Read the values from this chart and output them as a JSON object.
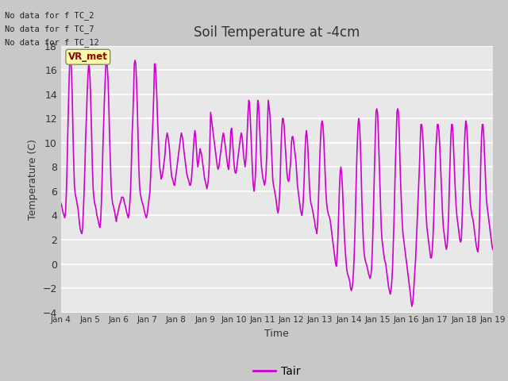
{
  "title": "Soil Temperature at -4cm",
  "xlabel": "Time",
  "ylabel": "Temperature (C)",
  "ylim": [
    -4,
    18
  ],
  "yticks": [
    -4,
    -2,
    0,
    2,
    4,
    6,
    8,
    10,
    12,
    14,
    16,
    18
  ],
  "line_color": "#cc00cc",
  "line_width": 1.2,
  "legend_label": "Tair",
  "text_lines": [
    "No data for f TC_2",
    "No data for f TC_7",
    "No data for f TC_12"
  ],
  "vr_met_label": "VR_met",
  "fig_bg_color": "#c8c8c8",
  "plot_bg_color": "#e8e8e8",
  "xtick_labels": [
    "Jan 4",
    "Jan 5",
    "Jan 6",
    "Jan 7",
    "Jan 8",
    "Jan 9",
    "Jan 10",
    "Jan 11",
    "Jan 12",
    "Jan 13",
    "Jan 14",
    "Jan 15",
    "Jan 16",
    "Jan 17",
    "Jan 18",
    "Jan 19"
  ],
  "data_values": [
    5.0,
    4.8,
    4.5,
    4.2,
    4.0,
    3.8,
    4.2,
    5.5,
    7.5,
    10.5,
    13.0,
    15.5,
    17.0,
    17.2,
    16.0,
    14.0,
    11.0,
    8.5,
    6.5,
    5.8,
    5.5,
    5.2,
    4.8,
    4.5,
    3.8,
    3.2,
    2.8,
    2.6,
    2.5,
    3.0,
    4.5,
    6.0,
    8.0,
    10.5,
    12.0,
    14.0,
    15.5,
    16.5,
    16.2,
    15.0,
    13.0,
    10.5,
    8.0,
    6.2,
    5.5,
    5.0,
    4.8,
    4.5,
    4.0,
    3.8,
    3.5,
    3.2,
    3.0,
    3.5,
    5.0,
    7.0,
    9.5,
    11.5,
    13.5,
    15.0,
    16.5,
    16.8,
    16.2,
    15.0,
    13.0,
    10.5,
    8.5,
    6.5,
    5.5,
    5.0,
    4.8,
    4.5,
    4.2,
    3.8,
    3.5,
    4.0,
    4.2,
    4.5,
    4.8,
    5.0,
    5.2,
    5.5,
    5.5,
    5.5,
    5.3,
    5.0,
    4.8,
    4.5,
    4.2,
    4.0,
    3.8,
    4.2,
    5.0,
    6.0,
    8.0,
    10.5,
    12.0,
    14.0,
    16.5,
    16.8,
    16.5,
    15.0,
    13.0,
    10.5,
    8.0,
    6.5,
    5.8,
    5.5,
    5.2,
    5.0,
    4.8,
    4.5,
    4.2,
    4.0,
    3.8,
    4.0,
    4.5,
    5.0,
    5.5,
    6.0,
    7.5,
    9.0,
    10.5,
    12.0,
    14.0,
    16.5,
    16.5,
    15.5,
    14.0,
    12.0,
    10.5,
    9.0,
    8.0,
    7.5,
    7.0,
    7.2,
    7.5,
    8.0,
    8.5,
    9.0,
    10.0,
    10.5,
    10.8,
    10.5,
    10.0,
    9.5,
    8.5,
    7.8,
    7.2,
    7.0,
    6.8,
    6.5,
    6.5,
    7.0,
    7.5,
    8.0,
    8.5,
    9.0,
    9.5,
    10.0,
    10.5,
    10.8,
    10.5,
    10.2,
    9.5,
    9.0,
    8.5,
    8.0,
    7.5,
    7.2,
    7.0,
    6.8,
    6.5,
    6.5,
    6.8,
    7.5,
    8.5,
    9.5,
    10.5,
    11.0,
    10.5,
    9.5,
    8.5,
    8.0,
    8.5,
    9.0,
    9.5,
    9.2,
    9.0,
    8.5,
    8.0,
    7.5,
    7.0,
    6.8,
    6.5,
    6.2,
    6.5,
    7.0,
    8.0,
    10.0,
    12.5,
    12.0,
    11.5,
    11.0,
    10.5,
    10.0,
    9.5,
    9.0,
    8.5,
    8.0,
    7.8,
    8.0,
    8.5,
    9.0,
    9.5,
    10.0,
    10.5,
    10.8,
    10.5,
    10.0,
    9.5,
    9.0,
    8.5,
    8.0,
    7.8,
    8.5,
    9.5,
    11.0,
    11.2,
    10.5,
    9.5,
    8.5,
    7.8,
    7.5,
    7.5,
    8.0,
    8.5,
    9.0,
    9.5,
    10.0,
    10.5,
    10.8,
    10.5,
    9.8,
    9.0,
    8.5,
    8.0,
    8.5,
    9.5,
    11.0,
    12.5,
    13.5,
    13.2,
    12.0,
    10.5,
    9.0,
    7.5,
    6.5,
    6.0,
    6.5,
    7.5,
    9.5,
    12.0,
    13.5,
    13.2,
    12.0,
    10.5,
    9.0,
    8.0,
    7.5,
    7.0,
    6.8,
    6.5,
    6.8,
    7.5,
    9.0,
    11.5,
    13.5,
    13.0,
    12.5,
    11.5,
    10.0,
    8.5,
    7.0,
    6.5,
    6.2,
    5.8,
    5.5,
    5.0,
    4.5,
    4.2,
    4.5,
    5.5,
    7.0,
    9.5,
    11.0,
    12.0,
    12.0,
    11.5,
    10.5,
    9.5,
    8.5,
    7.5,
    7.0,
    6.8,
    7.0,
    7.8,
    8.5,
    10.0,
    10.5,
    10.5,
    10.0,
    9.5,
    9.0,
    8.5,
    7.5,
    6.5,
    6.0,
    5.5,
    5.0,
    4.5,
    4.2,
    4.0,
    4.5,
    5.5,
    7.0,
    9.0,
    10.5,
    11.0,
    10.5,
    9.5,
    8.0,
    6.5,
    5.5,
    5.0,
    4.8,
    4.5,
    4.2,
    3.8,
    3.5,
    3.0,
    2.8,
    2.5,
    3.5,
    5.0,
    7.0,
    9.0,
    10.5,
    11.5,
    11.8,
    11.5,
    10.5,
    9.0,
    7.5,
    6.0,
    5.0,
    4.5,
    4.2,
    4.0,
    3.8,
    3.5,
    3.0,
    2.5,
    2.0,
    1.5,
    1.0,
    0.5,
    0.0,
    -0.2,
    0.5,
    2.0,
    4.0,
    6.0,
    7.5,
    8.0,
    7.5,
    6.5,
    5.0,
    3.5,
    2.0,
    1.0,
    0.2,
    -0.5,
    -0.8,
    -1.0,
    -1.2,
    -1.5,
    -2.0,
    -2.2,
    -2.0,
    -1.5,
    -0.5,
    1.0,
    3.0,
    5.5,
    8.0,
    10.0,
    11.5,
    12.0,
    11.5,
    10.0,
    8.0,
    5.5,
    3.5,
    2.0,
    1.0,
    0.5,
    0.2,
    0.0,
    -0.2,
    -0.5,
    -0.8,
    -1.0,
    -1.2,
    -1.0,
    -0.5,
    1.0,
    3.0,
    5.5,
    8.0,
    10.5,
    12.5,
    12.8,
    12.5,
    11.0,
    9.0,
    7.0,
    5.0,
    3.0,
    2.0,
    1.5,
    1.0,
    0.5,
    0.2,
    0.0,
    -0.5,
    -1.0,
    -1.5,
    -2.0,
    -2.2,
    -2.5,
    -2.2,
    -1.5,
    -0.5,
    1.5,
    3.5,
    6.0,
    8.5,
    10.5,
    12.5,
    12.8,
    12.5,
    11.0,
    8.5,
    6.5,
    5.0,
    3.5,
    2.5,
    2.0,
    1.5,
    1.0,
    0.5,
    0.0,
    -0.5,
    -1.0,
    -1.5,
    -2.0,
    -2.5,
    -3.2,
    -3.5,
    -3.2,
    -2.5,
    -1.5,
    -0.5,
    0.5,
    2.0,
    3.5,
    5.0,
    6.5,
    8.0,
    10.0,
    11.5,
    11.5,
    11.0,
    10.0,
    8.5,
    7.0,
    5.5,
    4.0,
    3.0,
    2.5,
    2.0,
    1.5,
    1.0,
    0.5,
    0.5,
    1.0,
    2.0,
    3.5,
    5.5,
    7.5,
    9.5,
    10.5,
    11.5,
    11.5,
    11.0,
    10.0,
    8.5,
    7.0,
    5.5,
    4.0,
    3.0,
    2.5,
    2.0,
    1.5,
    1.2,
    1.5,
    2.5,
    4.0,
    6.5,
    8.5,
    10.5,
    11.5,
    11.5,
    10.5,
    9.0,
    7.5,
    6.0,
    4.8,
    4.0,
    3.5,
    3.0,
    2.5,
    2.0,
    1.8,
    2.0,
    3.5,
    5.5,
    7.5,
    9.5,
    11.0,
    11.8,
    11.5,
    10.5,
    9.0,
    7.5,
    6.0,
    5.0,
    4.5,
    4.0,
    3.8,
    3.5,
    3.0,
    2.5,
    2.0,
    1.5,
    1.2,
    1.0,
    1.5,
    3.0,
    5.5,
    8.5,
    10.5,
    11.5,
    11.5,
    10.5,
    9.0,
    7.5,
    6.0,
    5.0,
    4.5,
    4.0,
    3.5,
    3.0,
    2.5,
    2.0,
    1.5,
    1.2
  ]
}
